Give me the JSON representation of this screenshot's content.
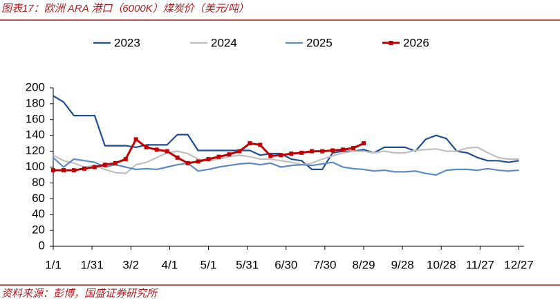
{
  "chart_data": {
    "type": "line",
    "title": "图表17：欧洲 ARA 港口（6000K）煤炭价（美元/吨）",
    "source": "资料来源：彭博，国盛证券研究所",
    "x": [
      0,
      8,
      16,
      24,
      32,
      40,
      48,
      56,
      64,
      72,
      80,
      88,
      96,
      104,
      112,
      120,
      128,
      136,
      144,
      152,
      160,
      168,
      176,
      184,
      192,
      200,
      208,
      216,
      224,
      232,
      240,
      248,
      256,
      264,
      272,
      280,
      288,
      296,
      304,
      312,
      320,
      328,
      336,
      344,
      352,
      360
    ],
    "xlim": [
      0,
      364
    ],
    "xticks": [
      {
        "value": 0,
        "label": "1/1"
      },
      {
        "value": 30,
        "label": "1/31"
      },
      {
        "value": 60,
        "label": "3/2"
      },
      {
        "value": 90,
        "label": "4/1"
      },
      {
        "value": 120,
        "label": "5/1"
      },
      {
        "value": 150,
        "label": "5/31"
      },
      {
        "value": 180,
        "label": "6/30"
      },
      {
        "value": 210,
        "label": "7/30"
      },
      {
        "value": 240,
        "label": "8/29"
      },
      {
        "value": 270,
        "label": "9/28"
      },
      {
        "value": 300,
        "label": "10/28"
      },
      {
        "value": 330,
        "label": "11/27"
      },
      {
        "value": 360,
        "label": "12/27"
      }
    ],
    "ylim": [
      0,
      200
    ],
    "yticks": [
      0,
      20,
      40,
      60,
      80,
      100,
      120,
      140,
      160,
      180,
      200
    ],
    "series": [
      {
        "name": "2023",
        "color": "#1f4e96",
        "values": [
          190,
          182,
          165,
          165,
          165,
          127,
          127,
          127,
          125,
          128,
          128,
          128,
          141,
          141,
          121,
          121,
          121,
          121,
          121,
          121,
          115,
          117,
          117,
          110,
          108,
          97,
          97,
          118,
          120,
          120,
          122,
          118,
          125,
          125,
          125,
          120,
          135,
          140,
          136,
          120,
          118,
          112,
          108,
          108,
          106,
          108
        ]
      },
      {
        "name": "2024",
        "color": "#bfbfbf",
        "values": [
          115,
          108,
          105,
          100,
          102,
          97,
          93,
          92,
          103,
          106,
          112,
          118,
          120,
          117,
          110,
          108,
          110,
          113,
          115,
          113,
          110,
          110,
          108,
          106,
          103,
          105,
          110,
          114,
          118,
          120,
          120,
          118,
          120,
          118,
          118,
          121,
          122,
          123,
          120,
          120,
          124,
          125,
          118,
          112,
          110,
          110
        ]
      },
      {
        "name": "2025",
        "color": "#5b8ac6",
        "values": [
          112,
          100,
          110,
          108,
          106,
          100,
          103,
          100,
          97,
          98,
          97,
          100,
          103,
          105,
          95,
          97,
          100,
          102,
          104,
          105,
          103,
          105,
          100,
          102,
          103,
          102,
          104,
          106,
          100,
          98,
          97,
          95,
          96,
          94,
          94,
          95,
          92,
          90,
          96,
          97,
          97,
          96,
          98,
          96,
          95,
          96
        ]
      },
      {
        "name": "2026",
        "color": "#c00000",
        "marker": "square",
        "values": [
          96,
          96,
          96,
          98,
          100,
          103,
          105,
          110,
          135,
          125,
          122,
          120,
          112,
          105,
          107,
          110,
          113,
          116,
          120,
          130,
          128,
          114,
          115,
          117,
          118,
          120,
          120,
          121,
          122,
          124,
          130,
          null,
          null,
          null,
          null,
          null,
          null,
          null,
          null,
          null,
          null,
          null,
          null,
          null,
          null,
          null
        ]
      }
    ]
  }
}
